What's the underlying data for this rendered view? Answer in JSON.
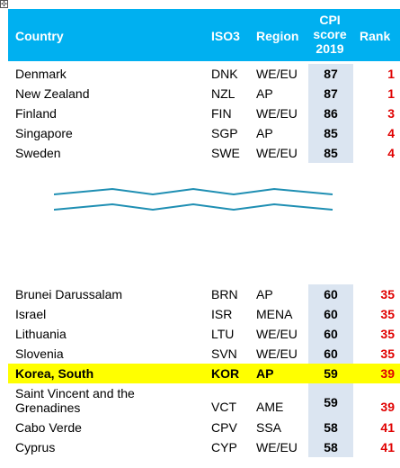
{
  "handle": {
    "glyph": "✣"
  },
  "header": {
    "country": "Country",
    "iso3": "ISO3",
    "region": "Region",
    "cpi_line1": "CPI",
    "cpi_line2": "score",
    "cpi_line3": "2019",
    "rank": "Rank"
  },
  "colors": {
    "header_bg": "#00b0f0",
    "score_bg": "#dbe5f1",
    "rank_text": "#e00000",
    "highlight": "#ffff00",
    "wave": "#1f8fb3"
  },
  "top_rows": [
    {
      "country": "Denmark",
      "iso3": "DNK",
      "region": "WE/EU",
      "score": "87",
      "rank": "1"
    },
    {
      "country": "New Zealand",
      "iso3": "NZL",
      "region": "AP",
      "score": "87",
      "rank": "1"
    },
    {
      "country": "Finland",
      "iso3": "FIN",
      "region": "WE/EU",
      "score": "86",
      "rank": "3"
    },
    {
      "country": "Singapore",
      "iso3": "SGP",
      "region": "AP",
      "score": "85",
      "rank": "4"
    },
    {
      "country": "Sweden",
      "iso3": "SWE",
      "region": "WE/EU",
      "score": "85",
      "rank": "4"
    }
  ],
  "bottom_rows": [
    {
      "country": "Brunei Darussalam",
      "iso3": "BRN",
      "region": "AP",
      "score": "60",
      "rank": "35"
    },
    {
      "country": "Israel",
      "iso3": "ISR",
      "region": "MENA",
      "score": "60",
      "rank": "35"
    },
    {
      "country": "Lithuania",
      "iso3": "LTU",
      "region": "WE/EU",
      "score": "60",
      "rank": "35"
    },
    {
      "country": "Slovenia",
      "iso3": "SVN",
      "region": "WE/EU",
      "score": "60",
      "rank": "35"
    },
    {
      "country": "Korea, South",
      "iso3": "KOR",
      "region": "AP",
      "score": "59",
      "rank": "39"
    },
    {
      "country_line1": "Saint Vincent and the",
      "country_line2": "Grenadines",
      "iso3": "VCT",
      "region": "AME",
      "score": "59",
      "rank": "39"
    },
    {
      "country": "Cabo Verde",
      "iso3": "CPV",
      "region": "SSA",
      "score": "58",
      "rank": "41"
    },
    {
      "country": "Cyprus",
      "iso3": "CYP",
      "region": "WE/EU",
      "score": "58",
      "rank": "41"
    }
  ]
}
